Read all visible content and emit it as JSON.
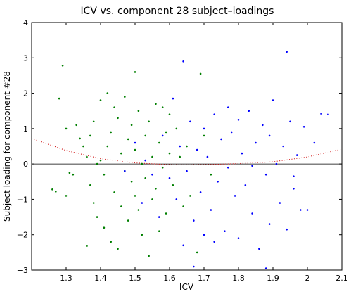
{
  "chart_data": {
    "type": "scatter",
    "title": "ICV vs. component 28 subject–loadings",
    "xlabel": "ICV",
    "ylabel": "Subject loading for component #28",
    "xlim": [
      1.2,
      2.1
    ],
    "ylim": [
      -3,
      4
    ],
    "xticks": [
      "1.3",
      "1.4",
      "1.5",
      "1.6",
      "1.7",
      "1.8",
      "1.9",
      "2",
      "2.1"
    ],
    "yticks": [
      "4",
      "3",
      "2",
      "1",
      "0",
      "−1",
      "−2",
      "−3"
    ],
    "xtick_values": [
      1.3,
      1.4,
      1.5,
      1.6,
      1.7,
      1.8,
      1.9,
      2.0,
      2.1
    ],
    "ytick_values": [
      4,
      3,
      2,
      1,
      0,
      -1,
      -2,
      -3
    ],
    "grid": false,
    "zero_line": {
      "y": 0,
      "color": "#000000"
    },
    "fit_curve": {
      "color": "#cc0000",
      "style": "dotted",
      "x": [
        1.2,
        1.3,
        1.4,
        1.5,
        1.6,
        1.7,
        1.8,
        1.9,
        2.0,
        2.1
      ],
      "y": [
        0.72,
        0.38,
        0.15,
        0.03,
        -0.02,
        -0.02,
        0.01,
        0.06,
        0.2,
        0.42
      ]
    },
    "series": [
      {
        "color": "#007f00",
        "points": [
          [
            1.26,
            -0.72
          ],
          [
            1.27,
            -0.78
          ],
          [
            1.28,
            1.85
          ],
          [
            1.29,
            2.78
          ],
          [
            1.3,
            -0.9
          ],
          [
            1.3,
            1.0
          ],
          [
            1.31,
            -0.25
          ],
          [
            1.32,
            -0.3
          ],
          [
            1.33,
            1.1
          ],
          [
            1.34,
            0.72
          ],
          [
            1.35,
            0.5
          ],
          [
            1.36,
            -2.32
          ],
          [
            1.36,
            0.2
          ],
          [
            1.37,
            0.8
          ],
          [
            1.37,
            -0.6
          ],
          [
            1.38,
            1.2
          ],
          [
            1.38,
            -1.1
          ],
          [
            1.39,
            0.0
          ],
          [
            1.39,
            -1.5
          ],
          [
            1.4,
            1.8
          ],
          [
            1.4,
            0.1
          ],
          [
            1.41,
            -0.3
          ],
          [
            1.41,
            -1.8
          ],
          [
            1.42,
            2.0
          ],
          [
            1.42,
            0.5
          ],
          [
            1.43,
            -2.2
          ],
          [
            1.43,
            0.9
          ],
          [
            1.44,
            1.6
          ],
          [
            1.44,
            -0.8
          ],
          [
            1.45,
            -2.4
          ],
          [
            1.45,
            1.3
          ],
          [
            1.46,
            0.3
          ],
          [
            1.46,
            -1.2
          ],
          [
            1.47,
            1.9
          ],
          [
            1.47,
            -0.2
          ],
          [
            1.48,
            0.7
          ],
          [
            1.48,
            -1.6
          ],
          [
            1.49,
            1.1
          ],
          [
            1.49,
            -0.5
          ],
          [
            1.5,
            2.6
          ],
          [
            1.5,
            0.4
          ],
          [
            1.5,
            -0.9
          ],
          [
            1.51,
            1.5
          ],
          [
            1.51,
            -1.3
          ],
          [
            1.52,
            0.0
          ],
          [
            1.52,
            -2.0
          ],
          [
            1.53,
            0.8
          ],
          [
            1.53,
            -0.4
          ],
          [
            1.54,
            -2.6
          ],
          [
            1.54,
            1.2
          ],
          [
            1.55,
            0.2
          ],
          [
            1.55,
            -1.0
          ],
          [
            1.56,
            1.7
          ],
          [
            1.56,
            -0.7
          ],
          [
            1.57,
            0.6
          ],
          [
            1.57,
            -1.9
          ],
          [
            1.58,
            1.6
          ],
          [
            1.58,
            -0.1
          ],
          [
            1.59,
            0.9
          ],
          [
            1.59,
            -1.4
          ],
          [
            1.6,
            1.4
          ],
          [
            1.6,
            0.3
          ],
          [
            1.61,
            -0.6
          ],
          [
            1.62,
            1.0
          ],
          [
            1.63,
            0.2
          ],
          [
            1.64,
            -1.2
          ],
          [
            1.65,
            0.5
          ],
          [
            1.66,
            -0.9
          ],
          [
            1.68,
            -2.5
          ],
          [
            1.69,
            2.55
          ],
          [
            1.7,
            0.8
          ],
          [
            1.72,
            -0.3
          ]
        ]
      },
      {
        "color": "#0000ff",
        "points": [
          [
            1.47,
            -0.2
          ],
          [
            1.5,
            0.6
          ],
          [
            1.52,
            -1.1
          ],
          [
            1.53,
            0.1
          ],
          [
            1.55,
            -0.3
          ],
          [
            1.57,
            -1.5
          ],
          [
            1.58,
            0.8
          ],
          [
            1.6,
            -0.4
          ],
          [
            1.61,
            1.85
          ],
          [
            1.62,
            -1.0
          ],
          [
            1.63,
            0.5
          ],
          [
            1.64,
            2.9
          ],
          [
            1.64,
            -2.3
          ],
          [
            1.65,
            -0.2
          ],
          [
            1.66,
            1.2
          ],
          [
            1.67,
            -1.6
          ],
          [
            1.68,
            0.4
          ],
          [
            1.69,
            -0.8
          ],
          [
            1.7,
            1.0
          ],
          [
            1.7,
            -2.0
          ],
          [
            1.71,
            0.2
          ],
          [
            1.72,
            -1.3
          ],
          [
            1.73,
            1.4
          ],
          [
            1.74,
            -0.5
          ],
          [
            1.75,
            0.7
          ],
          [
            1.76,
            -1.9
          ],
          [
            1.77,
            1.6
          ],
          [
            1.77,
            -0.1
          ],
          [
            1.78,
            0.9
          ],
          [
            1.79,
            -0.9
          ],
          [
            1.8,
            1.25
          ],
          [
            1.8,
            -2.1
          ],
          [
            1.81,
            0.3
          ],
          [
            1.82,
            -0.6
          ],
          [
            1.83,
            1.5
          ],
          [
            1.84,
            -1.4
          ],
          [
            1.85,
            0.6
          ],
          [
            1.86,
            -2.4
          ],
          [
            1.87,
            1.1
          ],
          [
            1.88,
            -0.3
          ],
          [
            1.89,
            0.8
          ],
          [
            1.89,
            -1.7
          ],
          [
            1.9,
            1.8
          ],
          [
            1.91,
            0.0
          ],
          [
            1.92,
            -1.1
          ],
          [
            1.93,
            0.5
          ],
          [
            1.94,
            3.17
          ],
          [
            1.94,
            -1.85
          ],
          [
            1.95,
            1.2
          ],
          [
            1.96,
            -0.7
          ],
          [
            1.97,
            0.25
          ],
          [
            1.98,
            -1.3
          ],
          [
            1.99,
            1.05
          ],
          [
            2.0,
            -1.3
          ],
          [
            2.02,
            0.6
          ],
          [
            2.04,
            1.42
          ],
          [
            2.06,
            1.4
          ],
          [
            1.67,
            -2.9
          ],
          [
            1.73,
            -2.2
          ],
          [
            1.84,
            -0.05
          ],
          [
            1.88,
            -2.95
          ],
          [
            1.96,
            -0.35
          ]
        ]
      }
    ]
  }
}
